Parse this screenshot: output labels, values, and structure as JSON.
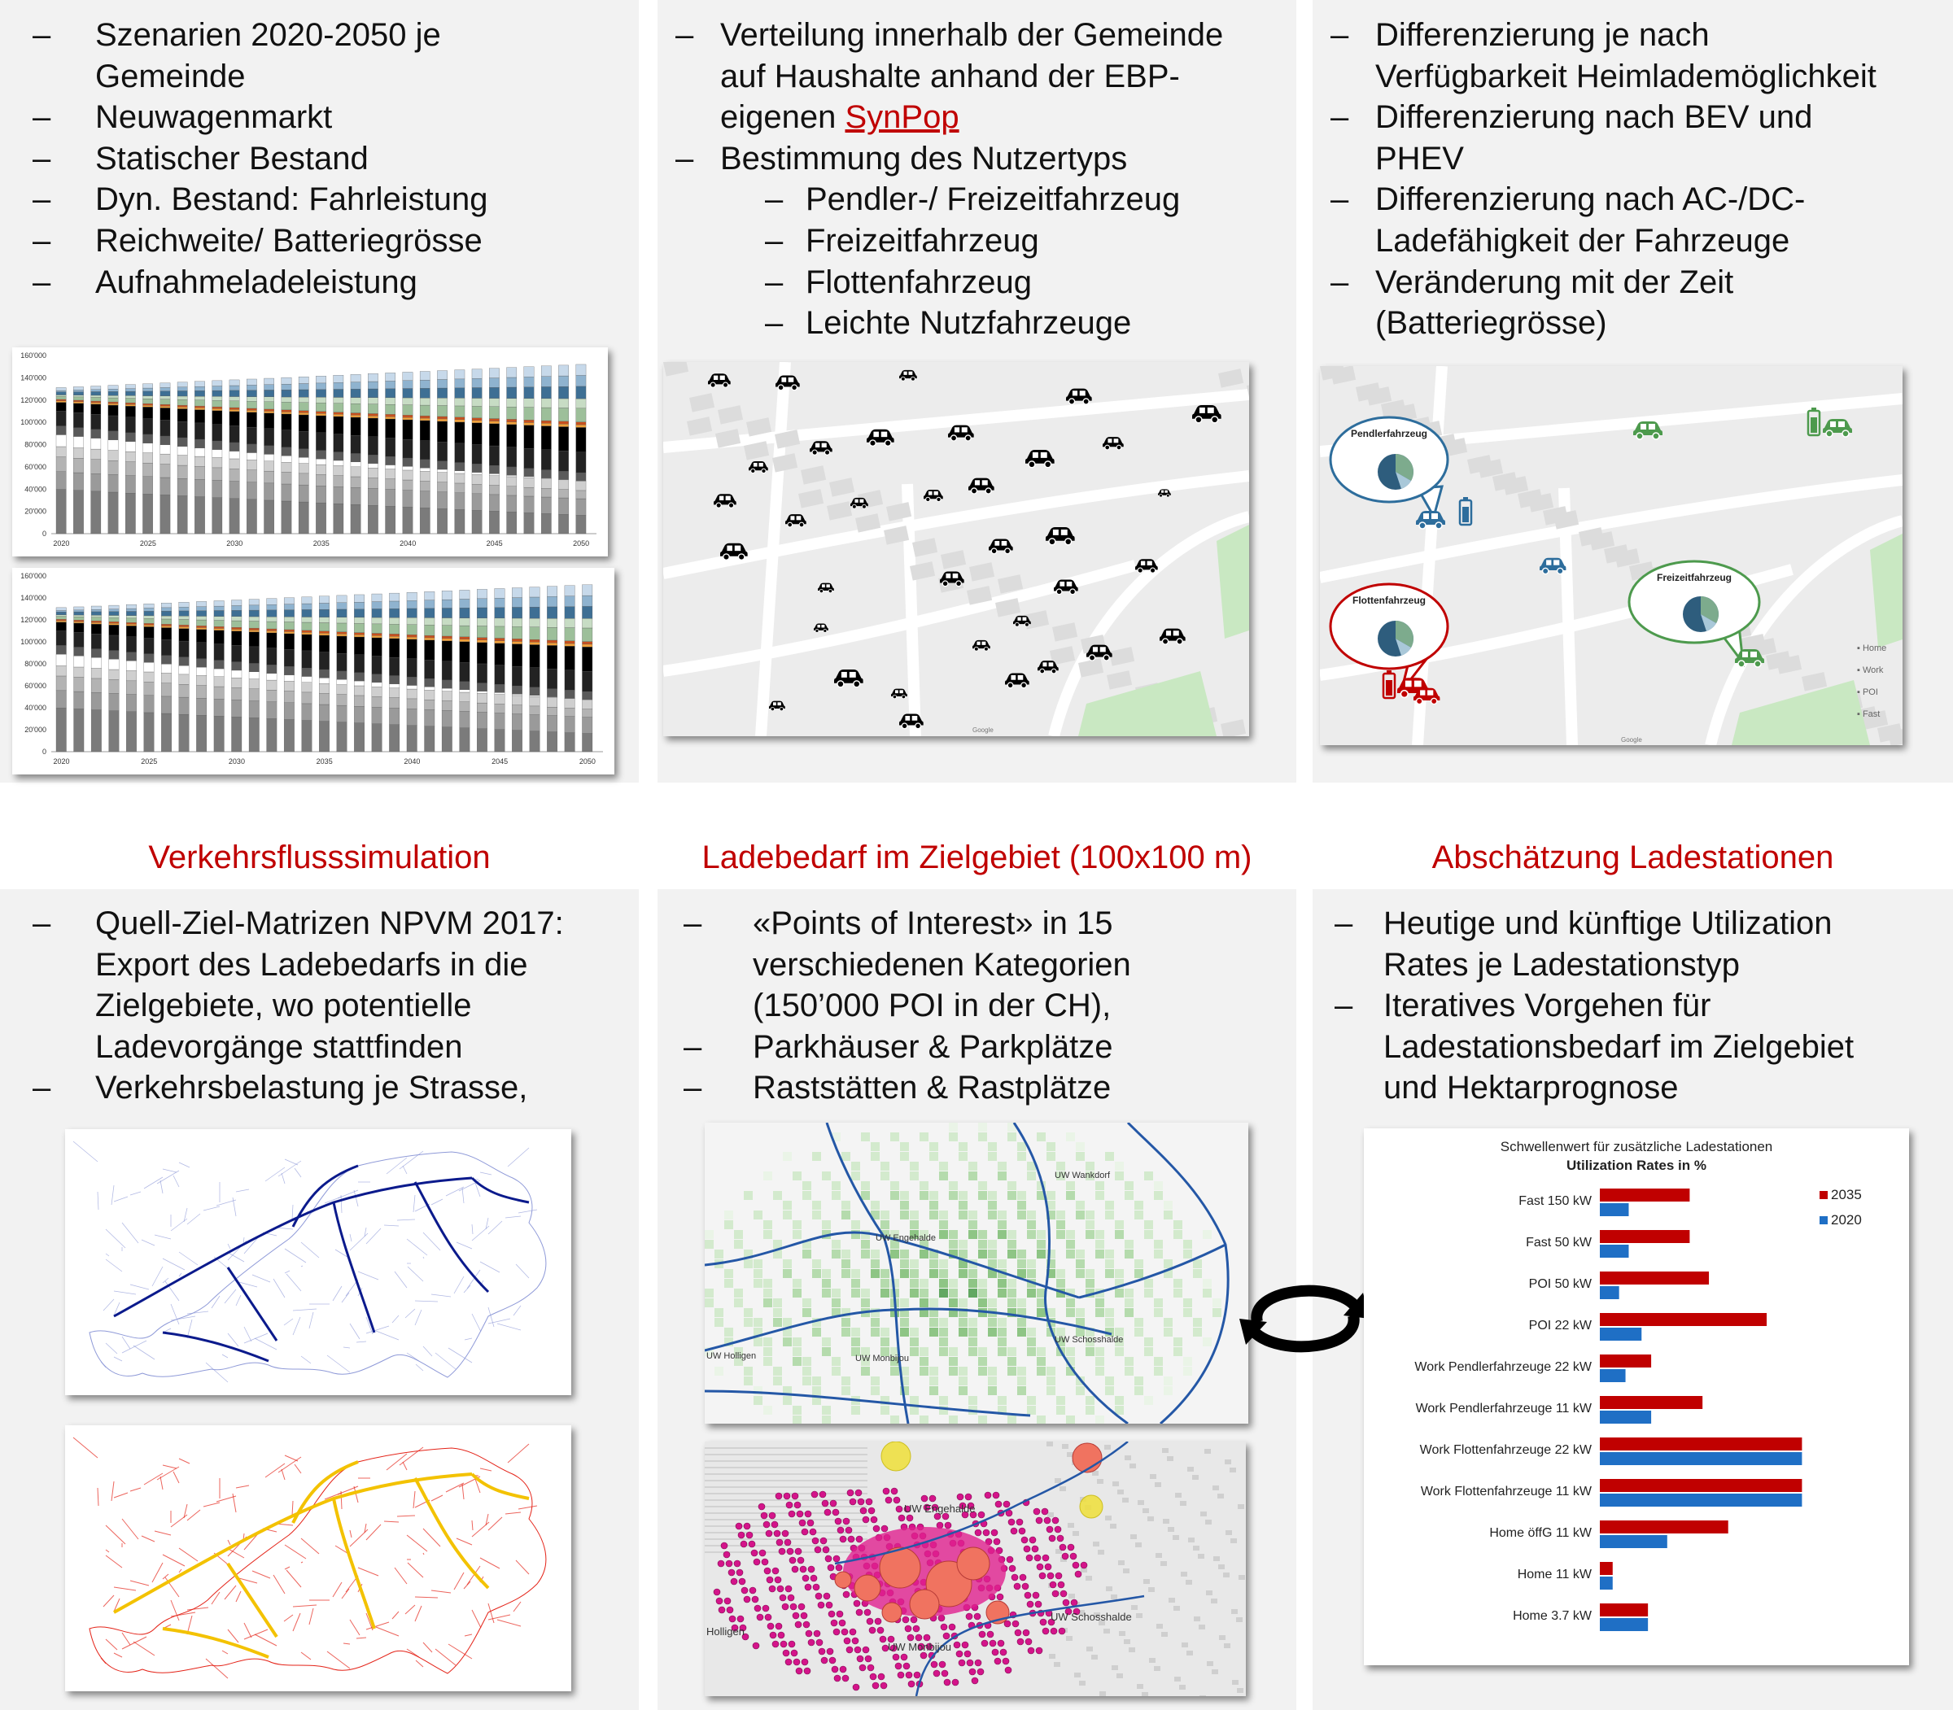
{
  "panels": {
    "p1": {
      "items": [
        {
          "dash": "–",
          "lines": [
            "Szenarien 2020-2050 je",
            "Gemeinde"
          ]
        },
        {
          "dash": "–",
          "lines": [
            "Neuwagenmarkt"
          ]
        },
        {
          "dash": "–",
          "lines": [
            "Statischer Bestand"
          ]
        },
        {
          "dash": "–",
          "lines": [
            "Dyn. Bestand: Fahrleistung"
          ]
        },
        {
          "dash": "–",
          "lines": [
            "Reichweite/ Batteriegrösse"
          ]
        },
        {
          "dash": "–",
          "lines": [
            "Aufnahmeladeleistung"
          ]
        }
      ]
    },
    "p2": {
      "line1": "Verteilung innerhalb der Gemeinde",
      "line2": "auf Haushalte anhand der EBP-",
      "line3_pre": "eigenen ",
      "line3_link": "SynPop",
      "line4": "Bestimmung des Nutzertyps",
      "subitems": [
        "Pendler-/ Freizeitfahrzeug",
        "Freizeitfahrzeug",
        "Flottenfahrzeug",
        "Leichte Nutzfahrzeuge"
      ],
      "dash": "–"
    },
    "p3": {
      "items": [
        {
          "dash": "–",
          "lines": [
            "Differenzierung je nach",
            "Verfügbarkeit Heimlademöglichkeit"
          ]
        },
        {
          "dash": "–",
          "lines": [
            "Differenzierung nach BEV und",
            "PHEV"
          ]
        },
        {
          "dash": "–",
          "lines": [
            "Differenzierung nach AC-/DC-",
            "Ladefähigkeit der Fahrzeuge"
          ]
        },
        {
          "dash": "–",
          "lines": [
            "Veränderung mit der Zeit",
            "(Batteriegrösse)"
          ]
        }
      ]
    },
    "p4": {
      "items": [
        {
          "dash": "–",
          "lines": [
            "Quell-Ziel-Matrizen NPVM 2017:",
            "Export des Ladebedarfs in die",
            "Zielgebiete, wo potentielle",
            "Ladevorgänge stattfinden"
          ]
        },
        {
          "dash": "–",
          "lines": [
            "Verkehrsbelastung je Strasse,"
          ]
        }
      ]
    },
    "p5": {
      "items": [
        {
          "dash": "–",
          "lines": [
            "«Points of Interest» in 15",
            "verschiedenen Kategorien",
            "(150’000 POI in der CH),"
          ]
        },
        {
          "dash": "–",
          "lines": [
            "Parkhäuser & Parkplätze"
          ]
        },
        {
          "dash": "–",
          "lines": [
            "Raststätten & Rastplätze"
          ]
        }
      ]
    },
    "p6": {
      "items": [
        {
          "dash": "–",
          "lines": [
            "Heutige und künftige Utilization",
            "Rates je Ladestationstyp"
          ]
        },
        {
          "dash": "–",
          "lines": [
            "Iteratives Vorgehen für",
            "Ladestationsbedarf im Zielgebiet",
            "und Hektarprognose"
          ]
        }
      ]
    }
  },
  "section_titles": {
    "s1": "Verkehrsflusssimulation",
    "s2": "Ladebedarf im Zielgebiet (100x100 m)",
    "s3": "Abschätzung Ladestationen"
  },
  "stock_chart": {
    "y_ticks": [
      "160'000",
      "140'000",
      "120'000",
      "100'000",
      "80'000",
      "60'000",
      "40'000",
      "20'000",
      "0"
    ],
    "x_ticks": [
      "2020",
      "2025",
      "2030",
      "2035",
      "2040",
      "2045",
      "2050"
    ]
  },
  "map_user_types": {
    "pendler": "Pendlerfahrzeug",
    "flotten": "Flottenfahrzeug",
    "freizeit": "Freizeitfahrzeug",
    "legend": [
      "Home",
      "Work",
      "POI",
      "Fast"
    ],
    "google": "Google"
  },
  "google_label": "Google",
  "bern_labels": {
    "wankdorf": "UW Wankdorf",
    "engehalde": "UW Engehalde",
    "holligen": "UW Holligen",
    "monbijou": "UW Monbijou",
    "schosshalde": "UW Schosshalde"
  },
  "bern_labels2": {
    "engehalde": "UW Engehalde",
    "holligen": "Holligen",
    "monbijou": "UW Monbijou",
    "schosshalde": "UW Schosshalde"
  },
  "colors": {
    "red": "#c00000",
    "blue": "#1f6fc5",
    "panel": "#f2f2f2"
  },
  "chart_data": {
    "type": "bar",
    "title": "Schwellenwert für zusätzliche Ladestationen",
    "subtitle": "Utilization Rates in %",
    "categories": [
      "Fast 150 kW",
      "Fast 50 kW",
      "POI 50 kW",
      "POI 22 kW",
      "Work Pendlerfahrzeuge 22 kW",
      "Work Pendlerfahrzeuge 11 kW",
      "Work Flottenfahrzeuge 22 kW",
      "Work Flottenfahrzeuge 11 kW",
      "Home öffG 11 kW",
      "Home 11 kW",
      "Home 3.7 kW"
    ],
    "series": [
      {
        "name": "2035",
        "color": "#c00000",
        "values": [
          28,
          28,
          34,
          52,
          16,
          32,
          63,
          63,
          40,
          4,
          15
        ]
      },
      {
        "name": "2020",
        "color": "#1f6fc5",
        "values": [
          9,
          9,
          6,
          13,
          8,
          16,
          63,
          63,
          21,
          4,
          15
        ]
      }
    ],
    "legend": "top-right",
    "xlim": [
      0,
      70
    ]
  }
}
